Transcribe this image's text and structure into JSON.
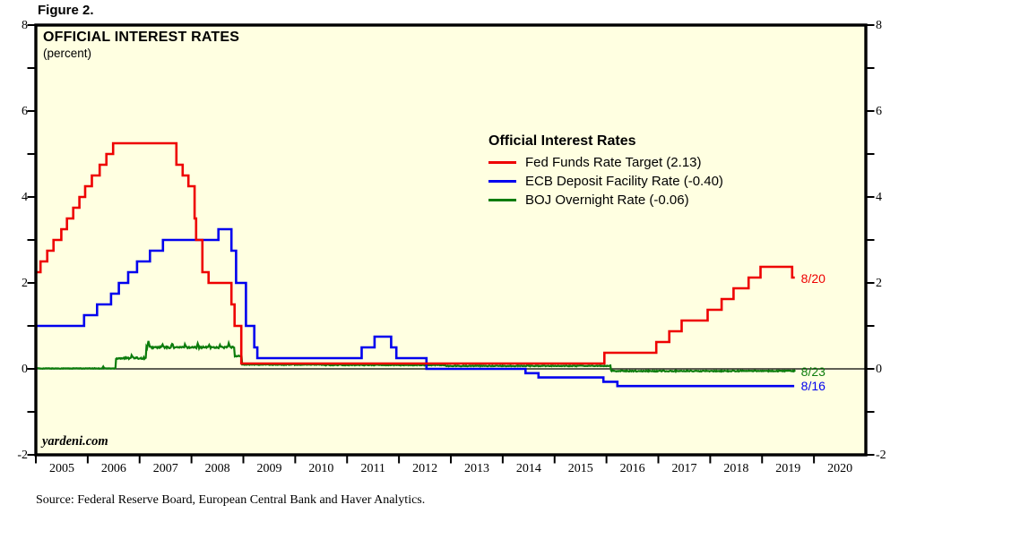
{
  "figure_label": "Figure 2.",
  "chart": {
    "title": "OFFICIAL INTEREST RATES",
    "subtitle": "(percent)",
    "watermark": "yardeni.com",
    "source": "Source: Federal Reserve Board, European Central Bank and Haver Analytics.",
    "colors": {
      "plot_bg": "#ffffe1",
      "axis": "#000000",
      "fed_red": "#ee0000",
      "ecb_blue": "#0000ee",
      "boj_green": "#0c7c0c"
    },
    "legend": {
      "title": "Official Interest Rates",
      "entries": [
        {
          "label": "Fed Funds Rate Target (2.13)",
          "color": "#ee0000"
        },
        {
          "label": "ECB Deposit Facility Rate (-0.40)",
          "color": "#0000ee"
        },
        {
          "label": "BOJ Overnight Rate (-0.06)",
          "color": "#0c7c0c"
        }
      ]
    },
    "annotations": [
      {
        "text": "8/20",
        "color": "#ee0000",
        "t": 2019.75,
        "value": 2.11
      },
      {
        "text": "8/23",
        "color": "#0c7c0c",
        "t": 2019.75,
        "value": -0.055
      },
      {
        "text": "8/16",
        "color": "#0000ee",
        "t": 2019.75,
        "value": -0.4
      }
    ]
  },
  "chart_data": {
    "type": "line",
    "title": "OFFICIAL INTEREST RATES",
    "ylabel": "percent",
    "x_range": [
      2005,
      2021
    ],
    "y_range": [
      -2,
      8
    ],
    "y_ticks_major": [
      8,
      6,
      4,
      2,
      0,
      -2
    ],
    "y_ticks_minor": [
      7,
      5,
      3,
      1,
      -1
    ],
    "x_tick_years": [
      2005,
      2006,
      2007,
      2008,
      2009,
      2010,
      2011,
      2012,
      2013,
      2014,
      2015,
      2016,
      2017,
      2018,
      2019,
      2020
    ],
    "grid": false,
    "legend_position": "inside-top-right",
    "series": [
      {
        "name": "BOJ Overnight Rate",
        "color": "#0c7c0c",
        "line_width": 2.2,
        "end_label": "8/23",
        "end_value": -0.06,
        "end_t": 2019.645,
        "steps": [
          [
            2005.0,
            0.01
          ],
          [
            2006.54,
            0.25
          ],
          [
            2007.13,
            0.5
          ],
          [
            2008.83,
            0.3
          ],
          [
            2008.97,
            0.1
          ],
          [
            2010.5,
            0.09
          ],
          [
            2012.9,
            0.07
          ],
          [
            2016.08,
            -0.05
          ]
        ],
        "noise": {
          "sample_dt": 0.013,
          "spike_width": 0.025,
          "eras": [
            [
              2005.0,
              2006.5,
              0.006
            ],
            [
              2006.5,
              2008.8,
              0.02
            ],
            [
              2008.8,
              2016.05,
              0.01
            ],
            [
              2016.05,
              2019.65,
              0.012
            ]
          ],
          "spikes": [
            [
              2006.3,
              0.04
            ],
            [
              2006.85,
              0.09
            ],
            [
              2007.17,
              0.15
            ],
            [
              2007.44,
              0.07
            ],
            [
              2007.63,
              0.1
            ],
            [
              2007.88,
              0.08
            ],
            [
              2008.12,
              0.11
            ],
            [
              2008.34,
              0.06
            ],
            [
              2008.55,
              0.05
            ],
            [
              2008.72,
              0.1
            ]
          ]
        }
      },
      {
        "name": "ECB Deposit Facility Rate",
        "color": "#0000ee",
        "line_width": 2.6,
        "end_label": "8/16",
        "end_value": -0.4,
        "end_t": 2019.62,
        "steps": [
          [
            2005.0,
            1.0
          ],
          [
            2005.93,
            1.25
          ],
          [
            2006.18,
            1.5
          ],
          [
            2006.45,
            1.75
          ],
          [
            2006.6,
            2.0
          ],
          [
            2006.78,
            2.25
          ],
          [
            2006.95,
            2.5
          ],
          [
            2007.2,
            2.75
          ],
          [
            2007.45,
            3.0
          ],
          [
            2008.52,
            3.25
          ],
          [
            2008.77,
            2.75
          ],
          [
            2008.86,
            2.0
          ],
          [
            2009.05,
            1.0
          ],
          [
            2009.21,
            0.5
          ],
          [
            2009.27,
            0.25
          ],
          [
            2011.28,
            0.5
          ],
          [
            2011.53,
            0.75
          ],
          [
            2011.85,
            0.5
          ],
          [
            2011.95,
            0.25
          ],
          [
            2012.53,
            0.0
          ],
          [
            2014.44,
            -0.1
          ],
          [
            2014.69,
            -0.2
          ],
          [
            2015.94,
            -0.3
          ],
          [
            2016.21,
            -0.4
          ]
        ]
      },
      {
        "name": "Fed Funds Rate Target",
        "color": "#ee0000",
        "line_width": 2.6,
        "end_label": "8/20",
        "end_value": 2.13,
        "end_t": 2019.63,
        "steps": [
          [
            2005.0,
            2.25
          ],
          [
            2005.09,
            2.5
          ],
          [
            2005.22,
            2.75
          ],
          [
            2005.34,
            3.0
          ],
          [
            2005.49,
            3.25
          ],
          [
            2005.6,
            3.5
          ],
          [
            2005.72,
            3.75
          ],
          [
            2005.84,
            4.0
          ],
          [
            2005.95,
            4.25
          ],
          [
            2006.08,
            4.5
          ],
          [
            2006.23,
            4.75
          ],
          [
            2006.36,
            5.0
          ],
          [
            2006.49,
            5.25
          ],
          [
            2007.71,
            4.75
          ],
          [
            2007.83,
            4.5
          ],
          [
            2007.94,
            4.25
          ],
          [
            2008.06,
            3.5
          ],
          [
            2008.09,
            3.0
          ],
          [
            2008.21,
            2.25
          ],
          [
            2008.33,
            2.0
          ],
          [
            2008.77,
            1.5
          ],
          [
            2008.83,
            1.0
          ],
          [
            2008.96,
            0.125
          ],
          [
            2015.96,
            0.375
          ],
          [
            2016.96,
            0.625
          ],
          [
            2017.21,
            0.875
          ],
          [
            2017.45,
            1.125
          ],
          [
            2017.95,
            1.375
          ],
          [
            2018.22,
            1.625
          ],
          [
            2018.45,
            1.875
          ],
          [
            2018.74,
            2.125
          ],
          [
            2018.97,
            2.375
          ],
          [
            2019.58,
            2.125
          ]
        ]
      }
    ]
  }
}
